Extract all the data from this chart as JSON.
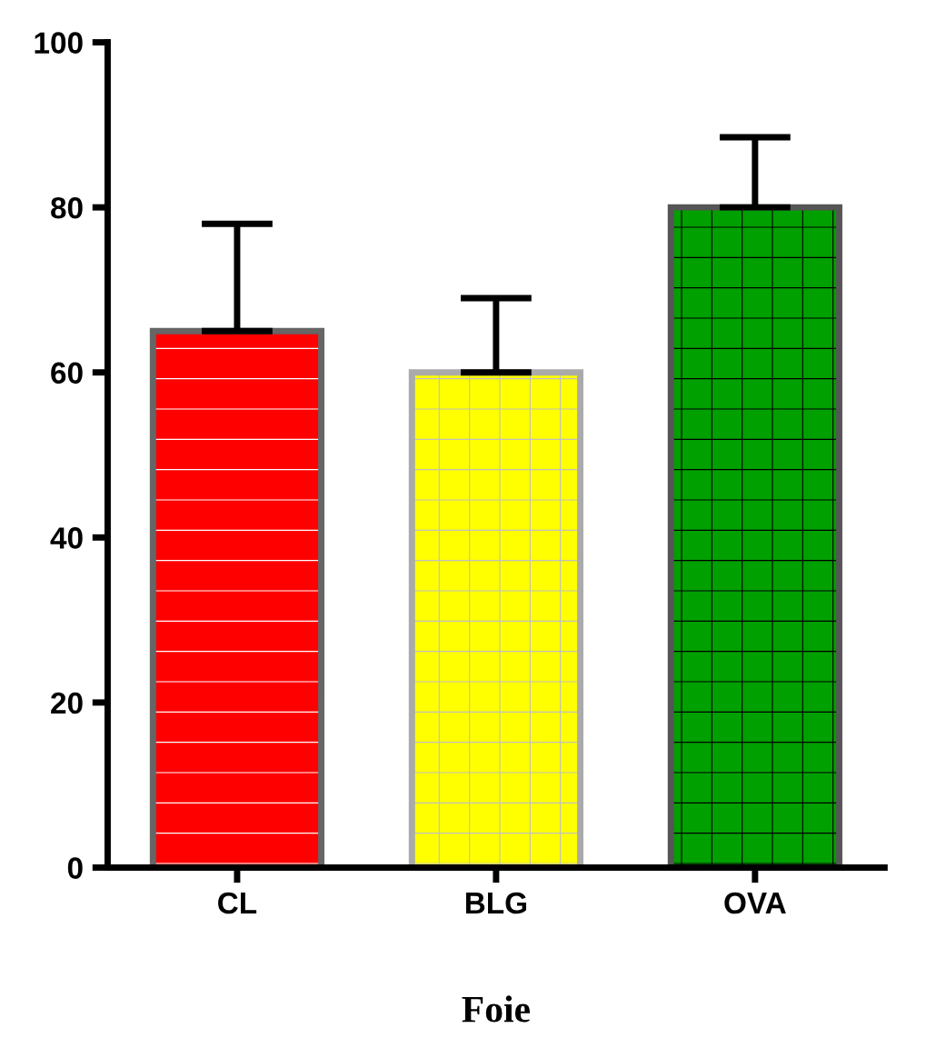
{
  "chart_data": {
    "type": "bar",
    "xlabel": "Foie",
    "categories": [
      "CL",
      "BLG",
      "OVA"
    ],
    "values": [
      65,
      60,
      80
    ],
    "colors": [
      "#ff0000",
      "#ffff00",
      "#00a000"
    ],
    "errors": [
      [
        65,
        78
      ],
      [
        60,
        69
      ],
      [
        80,
        88.5
      ]
    ],
    "ylim": [
      0,
      100
    ],
    "yticks": [
      0,
      20,
      40,
      60,
      80,
      100
    ],
    "grid": false
  }
}
